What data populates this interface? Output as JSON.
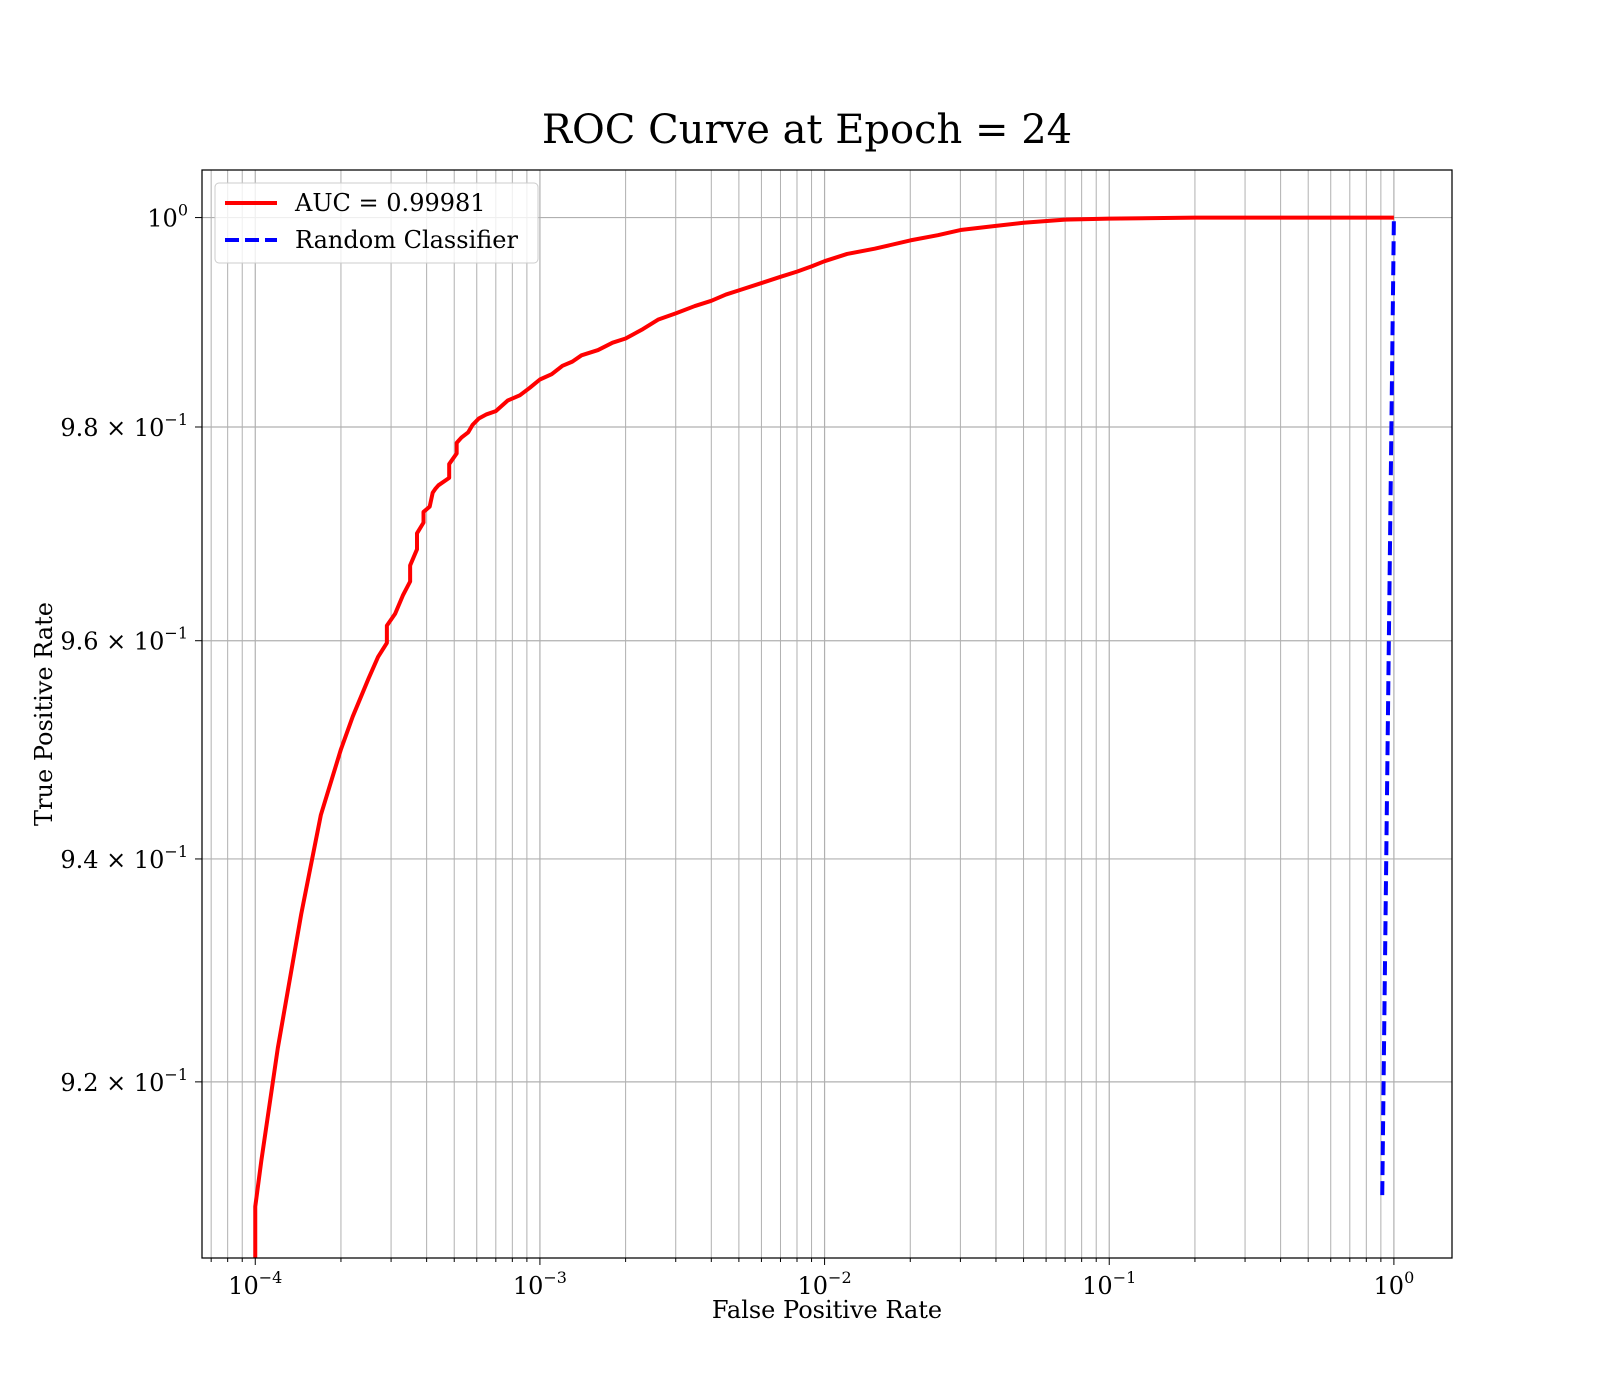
{
  "chart_data": {
    "type": "line",
    "title": "ROC Curve at Epoch = 24",
    "xlabel": "False Positive Rate",
    "ylabel": "True Positive Rate",
    "xscale": "log",
    "yscale": "log",
    "xlim": [
      6.5e-05,
      1.6
    ],
    "ylim": [
      0.9045,
      1.0046
    ],
    "grid": "both-major-minor",
    "legend_position": "top-left",
    "x_ticks": [
      {
        "base": "10",
        "exp": "−4",
        "value": 0.0001
      },
      {
        "base": "10",
        "exp": "−3",
        "value": 0.001
      },
      {
        "base": "10",
        "exp": "−2",
        "value": 0.01
      },
      {
        "base": "10",
        "exp": "−1",
        "value": 0.1
      },
      {
        "base": "10",
        "exp": "0",
        "value": 1
      }
    ],
    "y_ticks": [
      {
        "mant": "",
        "base": "10",
        "exp": "0",
        "value": 1.0
      },
      {
        "mant": "9.8 × ",
        "base": "10",
        "exp": "−1",
        "value": 0.98
      },
      {
        "mant": "9.6 × ",
        "base": "10",
        "exp": "−1",
        "value": 0.96
      },
      {
        "mant": "9.4 × ",
        "base": "10",
        "exp": "−1",
        "value": 0.94
      },
      {
        "mant": "9.2 × ",
        "base": "10",
        "exp": "−1",
        "value": 0.92
      }
    ],
    "series": [
      {
        "name": "AUC = 0.99981",
        "color": "#ff0000",
        "style": "solid",
        "x": [
          0.0001,
          0.0001,
          0.000105,
          0.00012,
          0.000145,
          0.00017,
          0.0002,
          0.00022,
          0.00025,
          0.00027,
          0.00029,
          0.00029,
          0.00031,
          0.00033,
          0.00035,
          0.00035,
          0.00037,
          0.00037,
          0.00039,
          0.00039,
          0.00041,
          0.00042,
          0.00043,
          0.00044,
          0.00048,
          0.00048,
          0.00051,
          0.00051,
          0.00053,
          0.00056,
          0.00058,
          0.00061,
          0.00065,
          0.0007,
          0.00077,
          0.00085,
          0.00092,
          0.001,
          0.0011,
          0.0012,
          0.0013,
          0.0014,
          0.0016,
          0.0018,
          0.002,
          0.0023,
          0.0026,
          0.003,
          0.0035,
          0.004,
          0.0045,
          0.005,
          0.006,
          0.007,
          0.008,
          0.009,
          0.01,
          0.012,
          0.015,
          0.02,
          0.025,
          0.03,
          0.04,
          0.05,
          0.07,
          0.1,
          0.2,
          0.5,
          1.0
        ],
        "y": [
          0.9045,
          0.909,
          0.913,
          0.923,
          0.935,
          0.944,
          0.95,
          0.953,
          0.9565,
          0.9585,
          0.9598,
          0.9614,
          0.9625,
          0.9642,
          0.9655,
          0.967,
          0.9685,
          0.97,
          0.971,
          0.972,
          0.9725,
          0.9738,
          0.9742,
          0.9745,
          0.9752,
          0.9765,
          0.9775,
          0.9785,
          0.979,
          0.9795,
          0.9802,
          0.9808,
          0.9812,
          0.9815,
          0.9825,
          0.983,
          0.9837,
          0.9845,
          0.985,
          0.9858,
          0.9862,
          0.9868,
          0.9873,
          0.988,
          0.9884,
          0.9893,
          0.9902,
          0.9908,
          0.9915,
          0.992,
          0.9926,
          0.993,
          0.9937,
          0.9943,
          0.9948,
          0.9953,
          0.9958,
          0.9965,
          0.997,
          0.9978,
          0.9983,
          0.9988,
          0.9992,
          0.9995,
          0.9998,
          0.9999,
          1.0,
          1.0,
          1.0
        ]
      },
      {
        "name": "Random Classifier",
        "color": "#0000ff",
        "style": "dashed",
        "x": [
          0.91,
          0.93,
          0.95,
          0.97,
          0.99,
          1.0
        ],
        "y": [
          0.91,
          0.93,
          0.95,
          0.97,
          0.99,
          1.0
        ]
      }
    ]
  }
}
